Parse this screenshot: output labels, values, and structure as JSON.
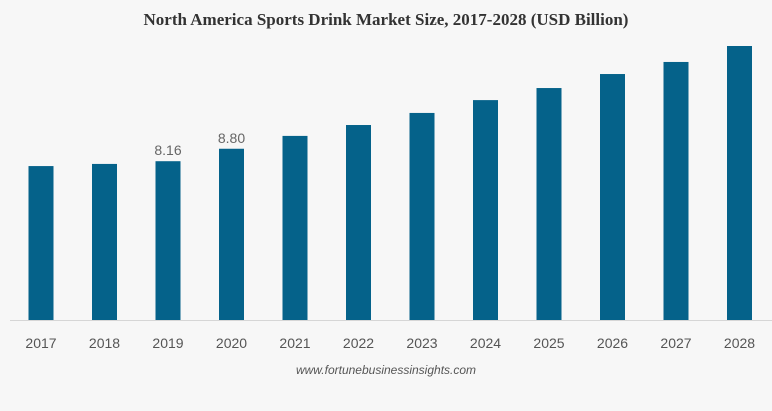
{
  "chart_data": {
    "type": "bar",
    "title": "North America Sports Drink Market Size, 2017-2028 (USD Billion)",
    "categories": [
      "2017",
      "2018",
      "2019",
      "2020",
      "2021",
      "2022",
      "2023",
      "2024",
      "2025",
      "2026",
      "2027",
      "2028"
    ],
    "values": [
      7.91,
      8.02,
      8.16,
      8.8,
      9.46,
      10.02,
      10.64,
      11.3,
      11.92,
      12.64,
      13.26,
      14.08
    ],
    "data_labels": {
      "2019": "8.16",
      "2020": "8.80"
    },
    "xlabel": "",
    "ylabel": "",
    "ylim": [
      0,
      14.5
    ],
    "grid": false,
    "bar_color": "#05628a"
  },
  "credit": "www.fortunebusinessinsights.com"
}
